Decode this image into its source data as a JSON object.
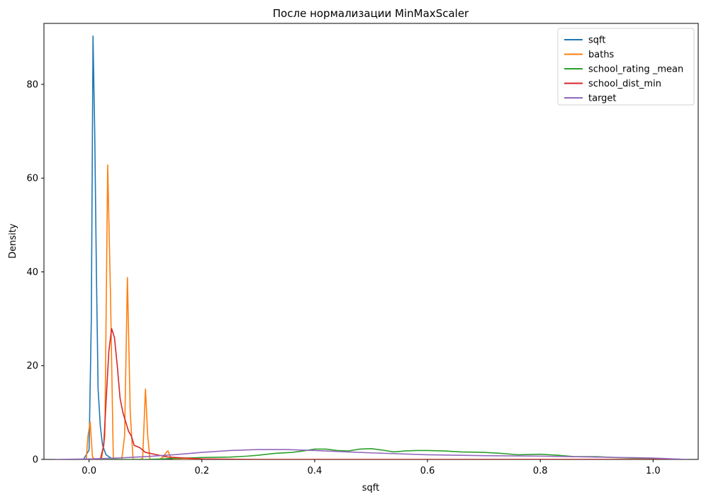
{
  "chart_data": {
    "type": "line",
    "title": "После нормализации MinMaxScaler",
    "xlabel": "sqft",
    "ylabel": "Density",
    "xlim": [
      -0.08,
      1.08
    ],
    "ylim": [
      0,
      93
    ],
    "xticks": [
      0.0,
      0.2,
      0.4,
      0.6,
      0.8,
      1.0
    ],
    "xtick_labels": [
      "0.0",
      "0.2",
      "0.4",
      "0.6",
      "0.8",
      "1.0"
    ],
    "yticks": [
      0,
      20,
      40,
      60,
      80
    ],
    "ytick_labels": [
      "0",
      "20",
      "40",
      "60",
      "80"
    ],
    "grid": false,
    "legend_position": "top-right",
    "series": [
      {
        "name": "sqft",
        "color": "#1f77b4",
        "x": [
          -0.01,
          0.0,
          0.004,
          0.007,
          0.01,
          0.013,
          0.016,
          0.02,
          0.024,
          0.03,
          0.04,
          0.05
        ],
        "y": [
          0,
          2,
          30,
          90.3,
          70,
          40,
          15,
          7,
          3,
          1,
          0.2,
          0
        ]
      },
      {
        "name": "baths",
        "color": "#ff7f0e",
        "x": [
          -0.005,
          -0.002,
          0.002,
          0.006,
          0.01,
          0.016,
          0.022,
          0.028,
          0.033,
          0.038,
          0.043,
          0.048,
          0.053,
          0.058,
          0.063,
          0.068,
          0.073,
          0.078,
          0.084,
          0.09,
          0.095,
          0.1,
          0.104,
          0.108,
          0.112,
          0.118,
          0.125,
          0.131,
          0.137,
          0.14,
          0.145,
          0.15,
          0.2,
          0.3,
          0.5,
          0.7,
          0.9,
          1.0
        ],
        "y": [
          0,
          5,
          8,
          0.5,
          0,
          0,
          0,
          5,
          62.8,
          35,
          0,
          0,
          0,
          0,
          5,
          38.8,
          10,
          0,
          0,
          0,
          0.2,
          15,
          5,
          0,
          0,
          0,
          0,
          0.5,
          1.5,
          1.8,
          0.3,
          0,
          0,
          0,
          0,
          0,
          0,
          0
        ]
      },
      {
        "name": "school_rating _mean",
        "color": "#2ca02c",
        "x": [
          0.0,
          0.1,
          0.2,
          0.25,
          0.28,
          0.3,
          0.33,
          0.36,
          0.38,
          0.4,
          0.42,
          0.44,
          0.46,
          0.48,
          0.5,
          0.52,
          0.54,
          0.56,
          0.58,
          0.6,
          0.63,
          0.66,
          0.7,
          0.73,
          0.76,
          0.8,
          0.83,
          0.86,
          0.9,
          0.93,
          0.96,
          1.0,
          1.03,
          1.06
        ],
        "y": [
          0,
          0,
          0.4,
          0.5,
          0.7,
          0.9,
          1.3,
          1.5,
          1.8,
          2.2,
          2.2,
          1.9,
          1.8,
          2.2,
          2.3,
          2.0,
          1.6,
          1.8,
          1.9,
          1.9,
          1.8,
          1.6,
          1.5,
          1.3,
          1.0,
          1.1,
          0.9,
          0.6,
          0.6,
          0.4,
          0.3,
          0.2,
          0.1,
          0
        ]
      },
      {
        "name": "school_dist_min",
        "color": "#d62728",
        "x": [
          0.0,
          0.02,
          0.026,
          0.03,
          0.035,
          0.04,
          0.045,
          0.05,
          0.055,
          0.06,
          0.065,
          0.07,
          0.075,
          0.08,
          0.09,
          0.1,
          0.12,
          0.14,
          0.17,
          0.2,
          0.3,
          0.5,
          0.7,
          0.9,
          1.0,
          1.05
        ],
        "y": [
          0,
          0,
          3,
          12,
          23,
          27.9,
          26,
          20,
          13,
          10,
          8,
          6,
          5,
          3,
          2.5,
          1.5,
          1,
          0.5,
          0.3,
          0.1,
          0,
          0,
          0,
          0,
          0,
          0
        ]
      },
      {
        "name": "target",
        "color": "#9467bd",
        "x": [
          -0.06,
          0.0,
          0.05,
          0.1,
          0.15,
          0.2,
          0.25,
          0.3,
          0.35,
          0.4,
          0.5,
          0.6,
          0.7,
          0.8,
          0.9,
          1.0,
          1.06
        ],
        "y": [
          0,
          0.1,
          0.3,
          0.6,
          1.0,
          1.5,
          1.9,
          2.1,
          2.1,
          1.9,
          1.4,
          1.0,
          0.8,
          0.7,
          0.5,
          0.3,
          0
        ]
      }
    ]
  }
}
